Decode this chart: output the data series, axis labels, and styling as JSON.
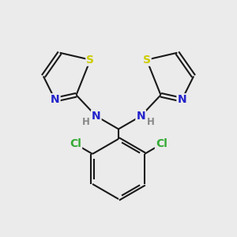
{
  "bg_color": "#ebebeb",
  "bond_color": "#1a1a1a",
  "bond_width": 1.5,
  "atom_colors": {
    "S": "#cccc00",
    "N": "#2222cc",
    "Cl": "#33aa33",
    "C": "#1a1a1a",
    "H": "#888888"
  },
  "font_size_atom": 10,
  "font_size_h": 8.5,
  "font_size_small": 7.5
}
